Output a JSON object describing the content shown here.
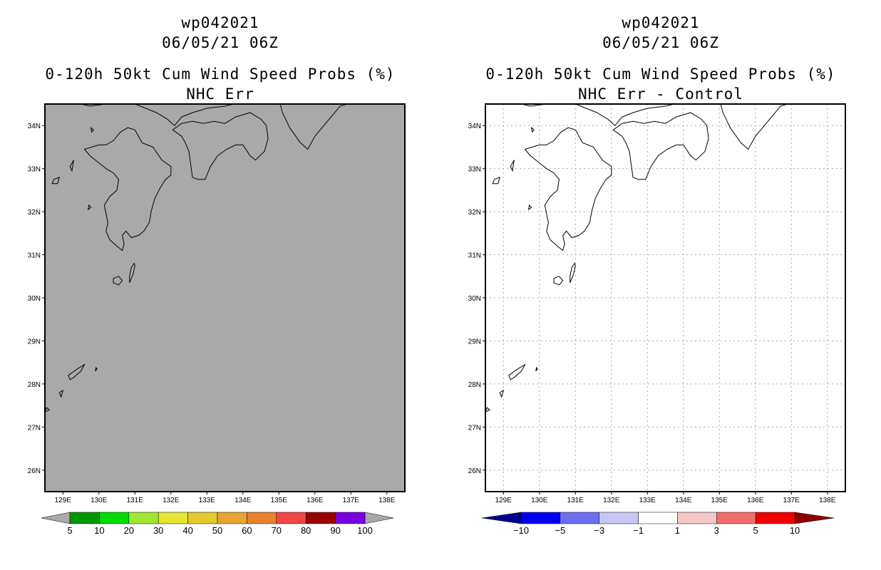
{
  "left_panel": {
    "storm_id": "wp042021",
    "datetime": "06/05/21 06Z",
    "title_line": "0-120h 50kt Cum Wind Speed Probs (%)",
    "subtitle": "NHC Err",
    "background_color": "#a9a9a9",
    "grid": false
  },
  "right_panel": {
    "storm_id": "wp042021",
    "datetime": "06/05/21 06Z",
    "title_line": "0-120h 50kt Cum Wind Speed Probs (%)",
    "subtitle": "NHC Err - Control",
    "background_color": "#ffffff",
    "grid": true
  },
  "axes": {
    "lon_range": [
      128.5,
      138.5
    ],
    "lat_range": [
      25.5,
      34.5
    ],
    "lon_ticks": [
      "129E",
      "130E",
      "131E",
      "132E",
      "133E",
      "134E",
      "135E",
      "136E",
      "137E",
      "138E"
    ],
    "lat_ticks": [
      "34N",
      "33N",
      "32N",
      "31N",
      "30N",
      "29N",
      "28N",
      "27N",
      "26N"
    ]
  },
  "colorbar_left": {
    "labels": [
      "5",
      "10",
      "20",
      "30",
      "40",
      "50",
      "60",
      "70",
      "80",
      "90",
      "100"
    ],
    "low_color": "#a9a9a9",
    "high_color": "#a9a9a9",
    "colors": [
      "#009600",
      "#00dc00",
      "#a0e632",
      "#e6e632",
      "#e6c832",
      "#e6a532",
      "#e68232",
      "#f04646",
      "#960000",
      "#7800dc"
    ]
  },
  "colorbar_right": {
    "labels": [
      "-10",
      "-5",
      "-3",
      "-1",
      "1",
      "3",
      "5",
      "10"
    ],
    "low_color": "#00008c",
    "high_color": "#8c0000",
    "colors": [
      "#0000f0",
      "#6e6ef0",
      "#c8c8f5",
      "#ffffff",
      "#f5c8c8",
      "#f06e6e",
      "#f00000"
    ]
  }
}
